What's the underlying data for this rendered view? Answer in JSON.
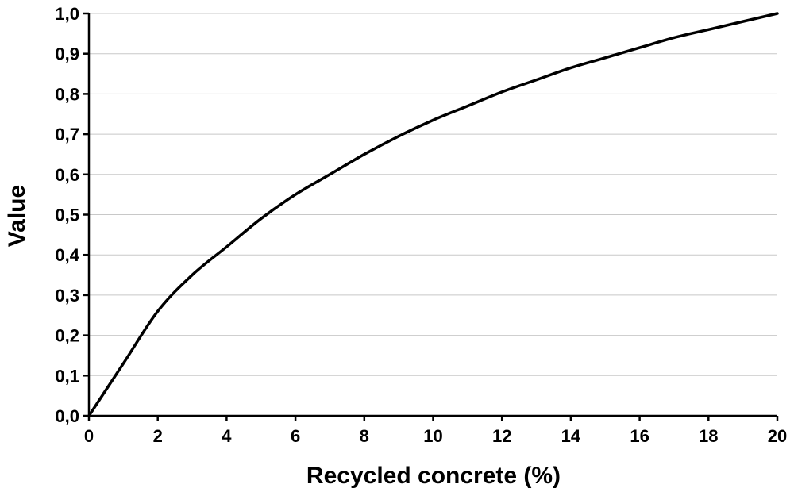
{
  "chart_data": {
    "type": "line",
    "title": "",
    "xlabel": "Recycled concrete  (%)",
    "ylabel": "Value",
    "xlim": [
      0,
      20
    ],
    "ylim": [
      0,
      1
    ],
    "x_ticks": [
      0,
      2,
      4,
      6,
      8,
      10,
      12,
      14,
      16,
      18,
      20
    ],
    "y_ticks": [
      0,
      0.1,
      0.2,
      0.3,
      0.4,
      0.5,
      0.6,
      0.7,
      0.8,
      0.9,
      1.0
    ],
    "x_tick_labels": [
      "0",
      "2",
      "4",
      "6",
      "8",
      "10",
      "12",
      "14",
      "16",
      "18",
      "20"
    ],
    "y_tick_labels": [
      "0,0",
      "0,1",
      "0,2",
      "0,3",
      "0,4",
      "0,5",
      "0,6",
      "0,7",
      "0,8",
      "0,9",
      "1,0"
    ],
    "grid": {
      "horizontal": true,
      "vertical": false
    },
    "legend": "none",
    "series": [
      {
        "x": [
          0,
          1,
          2,
          3,
          4,
          5,
          6,
          7,
          8,
          9,
          10,
          11,
          12,
          13,
          14,
          15,
          16,
          17,
          18,
          19,
          20
        ],
        "y": [
          0.0,
          0.13,
          0.26,
          0.35,
          0.42,
          0.49,
          0.55,
          0.6,
          0.65,
          0.695,
          0.735,
          0.77,
          0.805,
          0.835,
          0.865,
          0.89,
          0.915,
          0.94,
          0.96,
          0.98,
          1.0
        ]
      }
    ],
    "colors": {
      "line": "#000000",
      "grid": "#c8c8c8",
      "axis": "#000000"
    }
  }
}
